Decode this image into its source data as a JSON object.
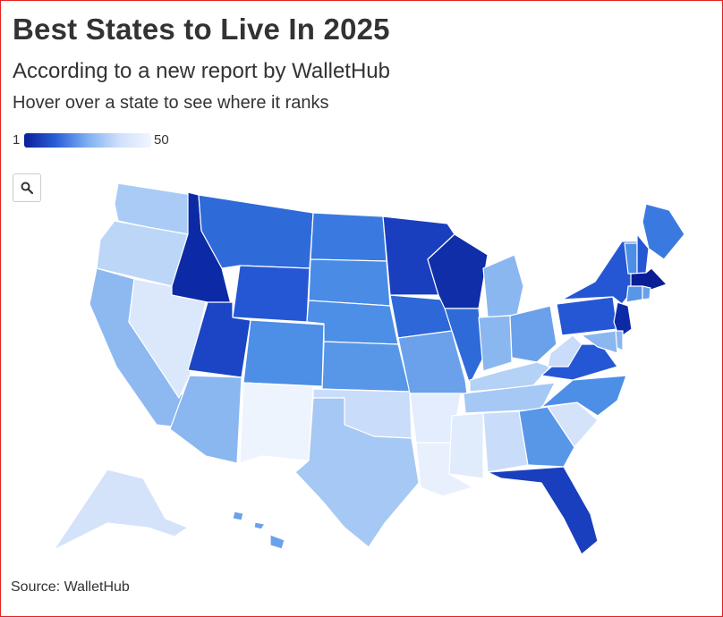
{
  "header": {
    "title": "Best States to Live In 2025",
    "subtitle": "According to a new report by WalletHub",
    "description": "Hover over a state to see where it ranks"
  },
  "legend": {
    "min_label": "1",
    "max_label": "50"
  },
  "toolbar": {
    "zoom_icon": "search-icon"
  },
  "footer": {
    "source": "Source: WalletHub"
  },
  "colors": {
    "border": "#e32222",
    "scale": [
      "#0a1f96",
      "#2b5fd8",
      "#7fb0f0",
      "#cfe0fb",
      "#f2f6fe"
    ]
  },
  "map": {
    "type": "choropleth-us-states",
    "value_range": [
      1,
      50
    ],
    "state_shades": {
      "WA": "#a9cbf5",
      "OR": "#bcd6f7",
      "CA": "#8db9f0",
      "NV": "#dbe8fc",
      "ID": "#0d2aa6",
      "MT": "#2f6ad9",
      "WY": "#2557d4",
      "UT": "#1b45c4",
      "AZ": "#8ab7f0",
      "CO": "#4d8ee6",
      "NM": "#eef4fe",
      "ND": "#3a7ae0",
      "SD": "#4a8be6",
      "NE": "#4d8ee6",
      "KS": "#5896e8",
      "OK": "#c9dcf9",
      "TX": "#a6c8f4",
      "MN": "#1a3fbe",
      "IA": "#2e68d8",
      "MO": "#6aa1ea",
      "AR": "#e3edfd",
      "LA": "#e8f0fd",
      "WI": "#0f2ea8",
      "IL": "#2f6ad9",
      "MI": "#8ab7f0",
      "IN": "#8ab7f0",
      "OH": "#6aa1ea",
      "KY": "#b4d1f6",
      "TN": "#a6c8f4",
      "MS": "#e0ebfc",
      "AL": "#c9dcf9",
      "GA": "#5896e8",
      "FL": "#1a3fbe",
      "SC": "#d4e3fa",
      "NC": "#4d8ee6",
      "VA": "#2557d4",
      "WV": "#c9dcf9",
      "PA": "#2557d4",
      "NY": "#2557d4",
      "ME": "#3a7ae0",
      "VT": "#4d8ee6",
      "NH": "#2557d4",
      "MA": "#0a1f96",
      "NJ": "#0d2aa6",
      "CT": "#5896e8",
      "RI": "#6aa1ea",
      "DE": "#8ab7f0",
      "MD": "#8ab7f0",
      "AK": "#d4e3fa",
      "HI": "#6aa1ea"
    }
  }
}
